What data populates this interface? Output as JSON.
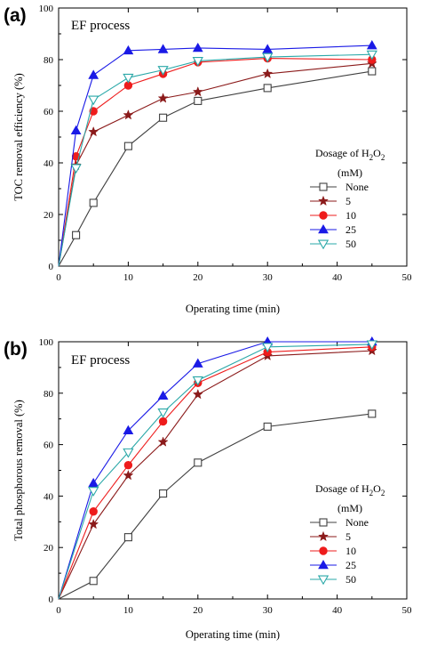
{
  "chart_data": [
    {
      "type": "line",
      "panel_label": "(a)",
      "title": "EF process",
      "xlabel": "Operating time (min)",
      "ylabel": "TOC removal efficiency (%)",
      "xlim": [
        0,
        50
      ],
      "ylim": [
        0,
        100
      ],
      "xticks": [
        0,
        10,
        20,
        30,
        40,
        50
      ],
      "yticks": [
        0,
        20,
        40,
        60,
        80,
        100
      ],
      "grid": false,
      "legend": {
        "title_main": "Dosage of H",
        "title_sub1": "2",
        "title_mid": "O",
        "title_sub2": "2",
        "title_units": "(mM)",
        "placement": "bottom-right"
      },
      "series": [
        {
          "name": "None",
          "marker": "square-open",
          "color": "#404040",
          "x": [
            0,
            2.5,
            5,
            10,
            15,
            20,
            30,
            45
          ],
          "y": [
            0,
            12,
            24.5,
            46.5,
            57.5,
            64,
            69,
            75.5
          ]
        },
        {
          "name": "5",
          "marker": "star",
          "color": "#8b1a1a",
          "x": [
            0,
            2.5,
            5,
            10,
            15,
            20,
            30,
            45
          ],
          "y": [
            0,
            39,
            52,
            58.5,
            65,
            67.5,
            74.5,
            78.5
          ]
        },
        {
          "name": "10",
          "marker": "circle-filled",
          "color": "#ee1c1c",
          "x": [
            0,
            2.5,
            5,
            10,
            15,
            20,
            30,
            45
          ],
          "y": [
            0,
            42.5,
            60,
            70,
            74.5,
            79,
            80.5,
            80
          ]
        },
        {
          "name": "25",
          "marker": "triangle-up-filled",
          "color": "#1a1ae6",
          "x": [
            0,
            2.5,
            5,
            10,
            15,
            20,
            30,
            45
          ],
          "y": [
            0,
            52.5,
            74,
            83.5,
            84,
            84.5,
            84,
            85.5
          ]
        },
        {
          "name": "50",
          "marker": "triangle-down-open",
          "color": "#2aa8a8",
          "x": [
            0,
            2.5,
            5,
            10,
            15,
            20,
            30,
            45
          ],
          "y": [
            0,
            38,
            64.5,
            73,
            76,
            79.5,
            81,
            82
          ]
        }
      ]
    },
    {
      "type": "line",
      "panel_label": "(b)",
      "title": "EF process",
      "xlabel": "Operating time (min)",
      "ylabel": "Total phosphorous removal (%)",
      "xlim": [
        0,
        50
      ],
      "ylim": [
        0,
        100
      ],
      "xticks": [
        0,
        10,
        20,
        30,
        40,
        50
      ],
      "yticks": [
        0,
        20,
        40,
        60,
        80,
        100
      ],
      "grid": false,
      "legend": {
        "title_main": "Dosage of H",
        "title_sub1": "2",
        "title_mid": "O",
        "title_sub2": "2",
        "title_units": "(mM)",
        "placement": "bottom-right"
      },
      "series": [
        {
          "name": "None",
          "marker": "square-open",
          "color": "#404040",
          "x": [
            0,
            5,
            10,
            15,
            20,
            30,
            45
          ],
          "y": [
            0,
            7,
            24,
            41,
            53,
            67,
            72
          ]
        },
        {
          "name": "5",
          "marker": "star",
          "color": "#8b1a1a",
          "x": [
            0,
            5,
            10,
            15,
            20,
            30,
            45
          ],
          "y": [
            0,
            29,
            48,
            61,
            79.5,
            94.5,
            96.5
          ]
        },
        {
          "name": "10",
          "marker": "circle-filled",
          "color": "#ee1c1c",
          "x": [
            0,
            5,
            10,
            15,
            20,
            30,
            45
          ],
          "y": [
            0,
            34,
            52,
            69,
            84,
            96,
            98
          ]
        },
        {
          "name": "25",
          "marker": "triangle-up-filled",
          "color": "#1a1ae6",
          "x": [
            0,
            5,
            10,
            15,
            20,
            30,
            45
          ],
          "y": [
            0,
            45,
            65.5,
            79,
            91.5,
            100,
            100
          ]
        },
        {
          "name": "50",
          "marker": "triangle-down-open",
          "color": "#2aa8a8",
          "x": [
            0,
            5,
            10,
            15,
            20,
            30,
            45
          ],
          "y": [
            0,
            42,
            57,
            72.5,
            85,
            98,
            99
          ]
        }
      ]
    }
  ]
}
